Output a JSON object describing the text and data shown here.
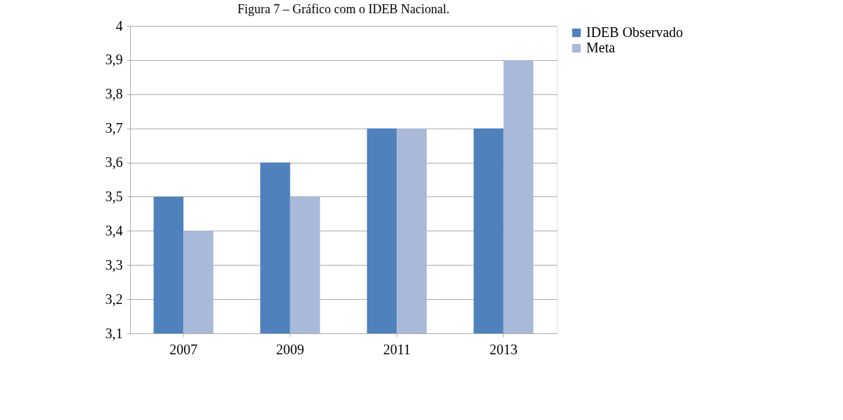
{
  "chart_data": {
    "type": "bar",
    "title": "Figura 7 – Gráfico com o IDEB Nacional.",
    "categories": [
      "2007",
      "2009",
      "2011",
      "2013"
    ],
    "series": [
      {
        "name": "IDEB Observado",
        "color": "#4f81bd",
        "values": [
          3.5,
          3.6,
          3.7,
          3.7
        ]
      },
      {
        "name": "Meta",
        "color": "#a9b9d9",
        "values": [
          3.4,
          3.5,
          3.7,
          3.9
        ]
      }
    ],
    "ylim": [
      3.1,
      4
    ],
    "yticks": [
      {
        "value": 3.1,
        "label": "3,1"
      },
      {
        "value": 3.2,
        "label": "3,2"
      },
      {
        "value": 3.3,
        "label": "3,3"
      },
      {
        "value": 3.4,
        "label": "3,4"
      },
      {
        "value": 3.5,
        "label": "3,5"
      },
      {
        "value": 3.6,
        "label": "3,6"
      },
      {
        "value": 3.7,
        "label": "3,7"
      },
      {
        "value": 3.8,
        "label": "3,8"
      },
      {
        "value": 3.9,
        "label": "3,9"
      },
      4
    ],
    "grid": "y",
    "legend": "right"
  }
}
